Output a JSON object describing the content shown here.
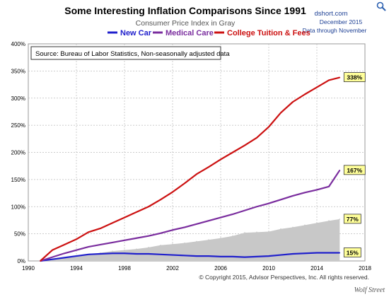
{
  "chart_data": {
    "type": "line",
    "title": "Some Interesting Inflation Comparisons Since 1991",
    "subtitle": "Consumer Price Index in Gray",
    "source_note": "Source: Bureau of Labor Statistics, Non-seasonally adjusted data",
    "brand": {
      "site": "dshort.com",
      "date": "December 2015",
      "through": "Data through November"
    },
    "copyright": "© Copyright 2015, Advisor Perspectives, Inc. All rights reserved.",
    "watermark": "Wolf Street",
    "xlim": [
      1990,
      2018
    ],
    "ylim": [
      0,
      400
    ],
    "x_ticks": [
      "1990",
      "1994",
      "1998",
      "2002",
      "2006",
      "2010",
      "2014",
      "2018"
    ],
    "y_ticks": [
      "0%",
      "50%",
      "100%",
      "150%",
      "200%",
      "250%",
      "300%",
      "350%",
      "400%"
    ],
    "legend_position": "top-center",
    "grid": true,
    "series": [
      {
        "name": "New Car",
        "color": "#2020cc",
        "end_label": "15%",
        "x": [
          1991,
          1992,
          1993,
          1994,
          1995,
          1996,
          1997,
          1998,
          1999,
          2000,
          2001,
          2002,
          2003,
          2004,
          2005,
          2006,
          2007,
          2008,
          2009,
          2010,
          2011,
          2012,
          2013,
          2014,
          2015,
          2015.9
        ],
        "y": [
          0,
          3,
          6,
          9,
          12,
          13,
          14,
          14,
          13,
          13,
          12,
          11,
          10,
          9,
          9,
          8,
          8,
          7,
          8,
          9,
          11,
          13,
          14,
          15,
          15,
          15
        ]
      },
      {
        "name": "Medical Care",
        "color": "#7a2d9e",
        "end_label": "167%",
        "x": [
          1991,
          1992,
          1993,
          1994,
          1995,
          1996,
          1997,
          1998,
          1999,
          2000,
          2001,
          2002,
          2003,
          2004,
          2005,
          2006,
          2007,
          2008,
          2009,
          2010,
          2011,
          2012,
          2013,
          2014,
          2015,
          2015.9
        ],
        "y": [
          0,
          7,
          14,
          20,
          26,
          30,
          34,
          38,
          42,
          46,
          51,
          57,
          62,
          68,
          74,
          80,
          86,
          93,
          100,
          106,
          113,
          120,
          126,
          131,
          137,
          167
        ]
      },
      {
        "name": "College Tuition & Fees",
        "color": "#cc1111",
        "end_label": "338%",
        "x": [
          1991,
          1992,
          1993,
          1994,
          1995,
          1996,
          1997,
          1998,
          1999,
          2000,
          2001,
          2002,
          2003,
          2004,
          2005,
          2006,
          2007,
          2008,
          2009,
          2010,
          2011,
          2012,
          2013,
          2014,
          2015,
          2015.9
        ],
        "y": [
          0,
          20,
          30,
          40,
          53,
          60,
          70,
          80,
          90,
          100,
          113,
          127,
          143,
          160,
          173,
          187,
          200,
          213,
          227,
          247,
          273,
          293,
          307,
          320,
          333,
          338
        ]
      },
      {
        "name": "CPI",
        "color": "#c8c8c8",
        "end_label": "77%",
        "style": "area",
        "x": [
          1991,
          1992,
          1993,
          1994,
          1995,
          1996,
          1997,
          1998,
          1999,
          2000,
          2001,
          2002,
          2003,
          2004,
          2005,
          2006,
          2007,
          2008,
          2009,
          2010,
          2011,
          2012,
          2013,
          2014,
          2015,
          2015.9
        ],
        "y": [
          0,
          3,
          6,
          9,
          12,
          15,
          18,
          20,
          22,
          25,
          29,
          31,
          33,
          36,
          39,
          42,
          46,
          52,
          53,
          54,
          59,
          62,
          66,
          70,
          74,
          77
        ]
      }
    ]
  }
}
